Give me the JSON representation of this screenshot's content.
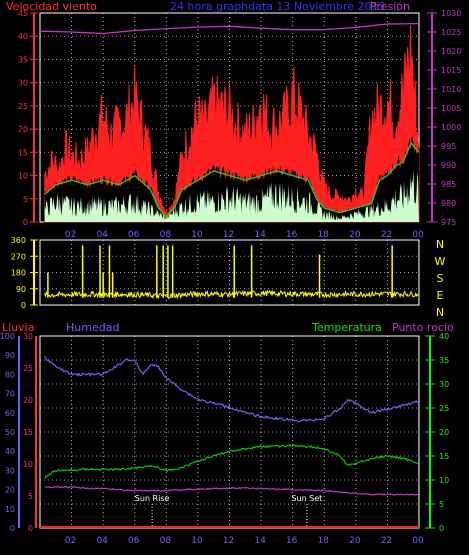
{
  "header": {
    "left": "Velocidad viento",
    "center": "24 hora graphdata 13 Noviembre 2013",
    "right": "Presión"
  },
  "colors": {
    "wind": "#ff2020",
    "gust_green": "#22cc22",
    "wind_light": "#ccffcc",
    "pressure": "#cc33cc",
    "direction": "#ffff00",
    "humidity": "#6666ff",
    "temperature": "#00cc00",
    "dewpoint": "#cc33cc",
    "rain": "#ff2020",
    "axis_red": "#ff3030",
    "axis_yellow": "#ffff00",
    "axis_green": "#00ff00",
    "axis_blue": "#6666ff",
    "axis_magenta": "#cc33cc",
    "time_label": "#6666ff"
  },
  "time_ticks": [
    "02",
    "04",
    "06",
    "08",
    "10",
    "12",
    "14",
    "16",
    "18",
    "20",
    "22",
    "00"
  ],
  "direction_letters": [
    "N",
    "W",
    "S",
    "E",
    "N"
  ],
  "bottom_labels": {
    "lluvia": "Lluvia",
    "humedad": "Humedad",
    "temperatura": "Temperatura",
    "punto_rocio": "Punto rocío",
    "sun_rise": "Sun Rise",
    "sun_set": "Sun Set"
  },
  "chart_data": [
    {
      "type": "line",
      "panel": "wind",
      "x_range": [
        0,
        24
      ],
      "left_axis": {
        "label": "Velocidad viento",
        "ticks": [
          0,
          5,
          10,
          15,
          20,
          25,
          30,
          35,
          40,
          45
        ],
        "range": [
          0,
          45
        ]
      },
      "right_axis": {
        "label": "Presión",
        "ticks": [
          975,
          980,
          985,
          990,
          995,
          1000,
          1005,
          1010,
          1015,
          1020,
          1025,
          1030
        ],
        "range": [
          975,
          1030
        ]
      },
      "series": [
        {
          "name": "Velocidad viento",
          "role": "gust",
          "x": [
            0.3,
            0.8,
            1.2,
            1.6,
            2,
            2.5,
            3,
            3.5,
            4,
            4.5,
            5,
            5.5,
            6,
            6.5,
            7,
            7.5,
            8,
            8.5,
            9,
            9.5,
            10,
            10.5,
            11,
            11.5,
            12,
            12.5,
            13,
            13.5,
            14,
            14.5,
            15,
            15.5,
            16,
            16.5,
            17,
            17.5,
            18,
            18.5,
            19,
            19.5,
            20,
            20.5,
            21,
            21.5,
            22,
            22.5,
            23,
            23.5,
            23.9
          ],
          "y": [
            11,
            14,
            12,
            17,
            15,
            14,
            16,
            21,
            24,
            20,
            22,
            24,
            28,
            22,
            16,
            7,
            2,
            5,
            15,
            20,
            24,
            22,
            27,
            26,
            25,
            22,
            20,
            22,
            28,
            22,
            22,
            24,
            29,
            25,
            20,
            16,
            8,
            6,
            6,
            5,
            7,
            6,
            24,
            26,
            28,
            24,
            30,
            40,
            20
          ]
        },
        {
          "name": "green",
          "role": "average",
          "x": [
            0.3,
            1,
            2,
            3,
            4,
            5,
            6,
            7,
            7.5,
            8,
            8.5,
            9,
            10,
            11,
            12,
            13,
            14,
            15,
            16,
            17,
            17.5,
            18,
            19,
            20,
            21,
            21.5,
            22,
            22.5,
            23,
            23.5,
            24
          ],
          "y": [
            6,
            8,
            9,
            8,
            9,
            8,
            10,
            7,
            3,
            1,
            3,
            7,
            9,
            11,
            10,
            9,
            10,
            11,
            10,
            9,
            5,
            3,
            2,
            3,
            4,
            9,
            10,
            12,
            13,
            17,
            15
          ]
        },
        {
          "name": "pale",
          "role": "speed",
          "x": [
            0.3,
            1,
            2,
            3,
            4,
            5,
            6,
            7,
            8,
            9,
            10,
            11,
            12,
            13,
            14,
            15,
            16,
            17,
            18,
            19,
            20,
            21,
            22,
            22.5,
            23,
            23.5,
            24
          ],
          "y": [
            3,
            5,
            4,
            4,
            4,
            4,
            5,
            3,
            1,
            4,
            5,
            5,
            6,
            5,
            5,
            7,
            6,
            5,
            2,
            1,
            2,
            3,
            4,
            6,
            6,
            10,
            8
          ]
        },
        {
          "name": "Presión",
          "role": "pressure",
          "x": [
            0,
            2,
            4,
            6,
            8,
            10,
            12,
            14,
            16,
            18,
            20,
            22,
            24
          ],
          "y": [
            1025.2,
            1025,
            1024.6,
            1025.4,
            1025.9,
            1026.3,
            1026.5,
            1026,
            1025.6,
            1025.6,
            1026.2,
            1027.1,
            1027.2
          ]
        }
      ]
    },
    {
      "type": "scatter",
      "panel": "direction",
      "x_range": [
        0,
        24
      ],
      "y_range": [
        0,
        360
      ],
      "ticks": [
        0,
        90,
        180,
        270,
        360
      ],
      "baseline": {
        "x": [
          0.3,
          2,
          4,
          6,
          8,
          10,
          12,
          14,
          16,
          18,
          20,
          22,
          24
        ],
        "y": [
          55,
          58,
          60,
          58,
          50,
          62,
          60,
          65,
          62,
          58,
          60,
          62,
          60
        ]
      },
      "spikes": [
        {
          "x": 0.5,
          "y": 180
        },
        {
          "x": 2.7,
          "y": 330
        },
        {
          "x": 3.8,
          "y": 330
        },
        {
          "x": 4.0,
          "y": 180
        },
        {
          "x": 4.4,
          "y": 330
        },
        {
          "x": 4.6,
          "y": 180
        },
        {
          "x": 7.4,
          "y": 330
        },
        {
          "x": 7.8,
          "y": 330
        },
        {
          "x": 8.1,
          "y": 330
        },
        {
          "x": 8.4,
          "y": 330
        },
        {
          "x": 12.3,
          "y": 330
        },
        {
          "x": 13.4,
          "y": 330
        },
        {
          "x": 17.7,
          "y": 280
        },
        {
          "x": 22.3,
          "y": 330
        }
      ]
    },
    {
      "type": "line",
      "panel": "temperature",
      "x_range": [
        0,
        24
      ],
      "rain_axis": {
        "label": "Lluvia",
        "ticks": [
          0,
          10,
          20,
          30,
          40,
          50,
          60,
          70,
          80,
          90,
          100
        ],
        "range": [
          0,
          100
        ]
      },
      "temp_axis": {
        "ticks": [
          0,
          5,
          10,
          15,
          20,
          25,
          30
        ],
        "range": [
          0,
          30
        ]
      },
      "right_axis": {
        "label": "Temperatura",
        "ticks": [
          0,
          5,
          10,
          15,
          20,
          25,
          30,
          35,
          40
        ],
        "range": [
          0,
          40
        ]
      },
      "series": [
        {
          "name": "Humedad",
          "axis": "rain",
          "x": [
            0.3,
            1,
            2,
            3,
            4,
            5,
            5.5,
            6,
            6.5,
            7,
            7.5,
            8,
            9,
            10,
            11,
            12,
            13,
            14,
            15,
            16,
            17,
            18,
            19,
            19.5,
            20,
            21,
            22,
            23,
            24
          ],
          "y": [
            89,
            84,
            80,
            80,
            80,
            85,
            88,
            87,
            80,
            85,
            84,
            78,
            72,
            67,
            65,
            63,
            60,
            58,
            57,
            56,
            56,
            57,
            62,
            67,
            65,
            60,
            62,
            64,
            66
          ]
        },
        {
          "name": "Temperatura",
          "axis": "right",
          "x": [
            0.3,
            1,
            2,
            3,
            4,
            5,
            6,
            7,
            8,
            9,
            10,
            11,
            12,
            13,
            14,
            15,
            16,
            17,
            18,
            19,
            19.5,
            20,
            21,
            22,
            23,
            24
          ],
          "y": [
            10.5,
            12,
            12,
            12.3,
            12.2,
            12.2,
            12.5,
            13,
            12,
            12.5,
            14,
            15,
            16,
            16.5,
            17,
            17,
            17.2,
            17,
            16.5,
            15,
            13,
            13.5,
            14.5,
            15,
            14.5,
            13.5
          ]
        },
        {
          "name": "Punto rocío",
          "axis": "right",
          "x": [
            0.3,
            1,
            2,
            3,
            4,
            5,
            6,
            7,
            8,
            9,
            10,
            11,
            12,
            13,
            14,
            15,
            16,
            17,
            18,
            19,
            20,
            21,
            22,
            23,
            24
          ],
          "y": [
            8.5,
            8.5,
            8.5,
            8.3,
            8.2,
            8,
            7.8,
            7.7,
            7.8,
            8,
            8.1,
            8.2,
            8.3,
            8.3,
            8.2,
            8.1,
            8,
            7.9,
            7.8,
            7.5,
            7.2,
            7,
            7,
            7,
            7
          ]
        },
        {
          "name": "Lluvia",
          "axis": "rain",
          "x": [
            0,
            24
          ],
          "y": [
            0,
            0
          ]
        }
      ],
      "annotations": [
        {
          "label": "Sun Rise",
          "x": 7.1
        },
        {
          "label": "Sun Set",
          "x": 16.9
        }
      ]
    }
  ]
}
